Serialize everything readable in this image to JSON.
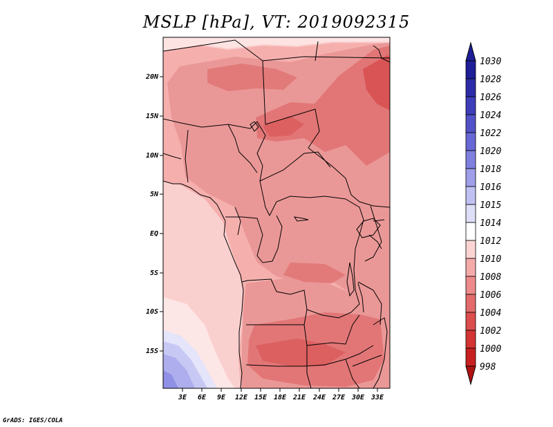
{
  "title": "MSLP [hPa], VT: 2019092315",
  "credit": "GrADS: IGES/COLA",
  "lat_labels": [
    "20N",
    "15N",
    "10N",
    "5N",
    "EQ",
    "5S",
    "10S",
    "15S"
  ],
  "lon_labels": [
    "3E",
    "6E",
    "9E",
    "12E",
    "15E",
    "18E",
    "21E",
    "24E",
    "27E",
    "30E",
    "33E"
  ],
  "colorbar": {
    "levels": [
      "1030",
      "1028",
      "1026",
      "1024",
      "1022",
      "1020",
      "1018",
      "1016",
      "1015",
      "1014",
      "1012",
      "1010",
      "1008",
      "1006",
      "1004",
      "1002",
      "1000",
      "998"
    ],
    "colors": [
      "#1e1e96",
      "#2c2ca8",
      "#3e3eba",
      "#5252c8",
      "#6767d6",
      "#8080e0",
      "#9e9ee9",
      "#c0c0f2",
      "#dedef8",
      "#ffffff",
      "#fcd4d4",
      "#f5aaaa",
      "#ed8a8a",
      "#e36b6b",
      "#dc4d4d",
      "#d43434",
      "#c82020",
      "#b01212"
    ]
  }
}
